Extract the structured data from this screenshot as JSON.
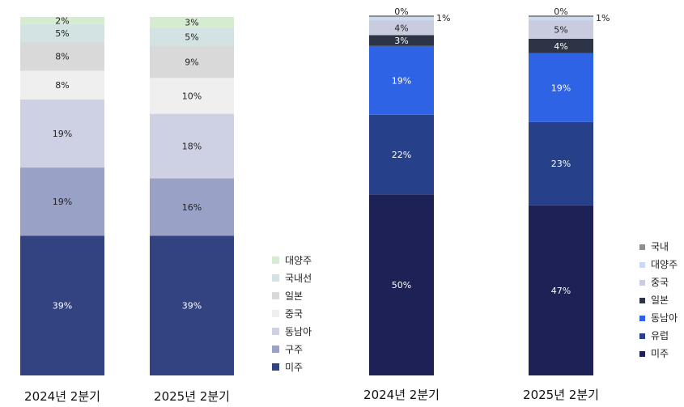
{
  "chart_data": [
    {
      "type": "bar",
      "stacked": true,
      "categories": [
        "2024년 2분기",
        "2025년 2분기"
      ],
      "series": [
        {
          "name": "미주",
          "color": "#334281",
          "values": [
            39,
            39
          ]
        },
        {
          "name": "구주",
          "color": "#9aa1c6",
          "values": [
            19,
            16
          ]
        },
        {
          "name": "동남아",
          "color": "#ced1e4",
          "values": [
            19,
            18
          ]
        },
        {
          "name": "중국",
          "color": "#efefef",
          "values": [
            8,
            10
          ]
        },
        {
          "name": "일본",
          "color": "#d9d9d9",
          "values": [
            8,
            9
          ]
        },
        {
          "name": "국내선",
          "color": "#d3e2e2",
          "values": [
            5,
            5
          ]
        },
        {
          "name": "대양주",
          "color": "#d5ecd0",
          "values": [
            2,
            3
          ]
        }
      ],
      "value_suffix": "%",
      "legend": "right"
    },
    {
      "type": "bar",
      "stacked": true,
      "categories": [
        "2024년 2분기",
        "2025년 2분기"
      ],
      "series": [
        {
          "name": "미주",
          "color": "#1e2155",
          "values": [
            50,
            47
          ]
        },
        {
          "name": "유럽",
          "color": "#26418a",
          "values": [
            22,
            23
          ]
        },
        {
          "name": "동남아",
          "color": "#2e63e6",
          "values": [
            19,
            19
          ]
        },
        {
          "name": "일본",
          "color": "#2d3446",
          "values": [
            3,
            4
          ]
        },
        {
          "name": "중국",
          "color": "#c9cbde",
          "values": [
            4,
            5
          ]
        },
        {
          "name": "대양주",
          "color": "#c8d9f4",
          "values": [
            1,
            1
          ]
        },
        {
          "name": "국내",
          "color": "#8e8e8e",
          "values": [
            0,
            0
          ]
        }
      ],
      "value_suffix": "%",
      "legend": "right"
    }
  ]
}
